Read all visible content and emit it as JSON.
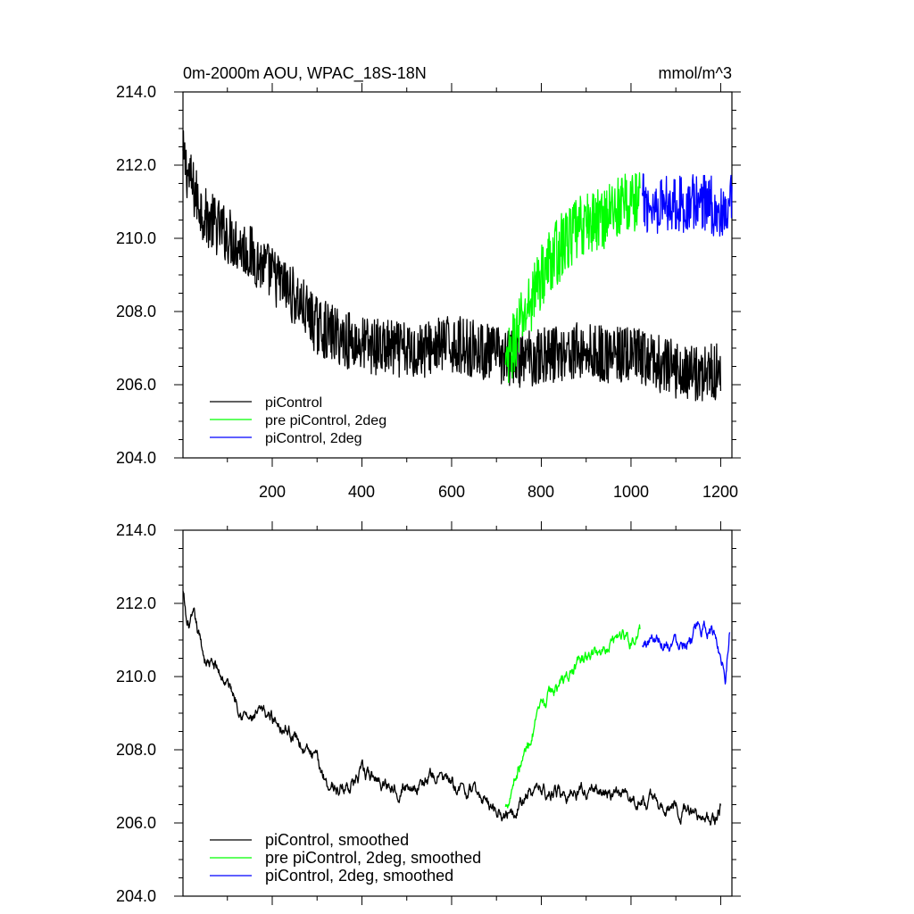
{
  "chart_data": [
    {
      "type": "line",
      "title": "0m-2000m AOU, WPAC_18S-18N",
      "units": "mmol/m^3",
      "xlim": [
        1,
        1225
      ],
      "ylim": [
        204,
        214
      ],
      "x_ticks": [
        200,
        400,
        600,
        800,
        1000,
        1200
      ],
      "x_tick_labels": [
        "200",
        "400",
        "600",
        "800",
        "1000",
        "1200"
      ],
      "y_ticks": [
        204,
        206,
        208,
        210,
        212,
        214
      ],
      "y_tick_labels": [
        "204.0",
        "206.0",
        "208.0",
        "210.0",
        "212.0",
        "214.0"
      ],
      "legend_position": "bottom-left",
      "series": [
        {
          "name": "piControl",
          "color": "#000000",
          "x": [
            1,
            25,
            50,
            100,
            150,
            200,
            250,
            300,
            350,
            400,
            450,
            500,
            550,
            600,
            650,
            700,
            750,
            800,
            850,
            900,
            950,
            1000,
            1050,
            1100,
            1150,
            1200
          ],
          "y": [
            212.2,
            211.3,
            210.6,
            210.1,
            209.6,
            209.0,
            208.4,
            207.6,
            207.3,
            207.1,
            207.0,
            206.9,
            207.0,
            207.1,
            207.0,
            206.8,
            206.7,
            206.8,
            206.9,
            206.9,
            206.8,
            206.8,
            206.6,
            206.4,
            206.3,
            206.4
          ],
          "noise": 0.8
        },
        {
          "name": "pre piControl, 2deg",
          "color": "#00ff00",
          "x": [
            720,
            740,
            760,
            780,
            800,
            820,
            840,
            860,
            880,
            900,
            920,
            940,
            960,
            980,
            1000,
            1020
          ],
          "y": [
            206.3,
            207.2,
            207.8,
            208.4,
            209.0,
            209.4,
            209.7,
            210.0,
            210.2,
            210.4,
            210.5,
            210.6,
            210.8,
            210.9,
            211.0,
            211.0
          ],
          "noise": 0.9
        },
        {
          "name": "piControl, 2deg",
          "color": "#0000ff",
          "x": [
            1025,
            1050,
            1075,
            1100,
            1125,
            1150,
            1175,
            1200,
            1210,
            1225
          ],
          "y": [
            211.0,
            210.9,
            211.0,
            211.0,
            210.9,
            211.0,
            211.0,
            210.6,
            210.4,
            211.0
          ],
          "noise": 0.8
        }
      ]
    },
    {
      "type": "line",
      "xlim": [
        1,
        1225
      ],
      "ylim": [
        204,
        214
      ],
      "y_ticks": [
        204,
        206,
        208,
        210,
        212,
        214
      ],
      "y_tick_labels": [
        "204.0",
        "206.0",
        "208.0",
        "210.0",
        "212.0",
        "214.0"
      ],
      "legend_position": "bottom-left",
      "series": [
        {
          "name": "piControl, smoothed",
          "color": "#000000",
          "x": [
            1,
            10,
            25,
            50,
            75,
            100,
            125,
            150,
            175,
            200,
            225,
            250,
            275,
            300,
            325,
            350,
            400,
            450,
            500,
            550,
            575,
            600,
            650,
            700,
            720,
            750,
            800,
            850,
            900,
            950,
            1000,
            1050,
            1100,
            1150,
            1190,
            1200
          ],
          "y": [
            212.3,
            211.3,
            211.5,
            210.5,
            210.2,
            209.8,
            209.3,
            208.8,
            208.9,
            208.9,
            208.7,
            208.4,
            208.0,
            207.6,
            207.1,
            206.9,
            207.3,
            207.1,
            207.0,
            207.2,
            207.3,
            207.0,
            206.8,
            206.4,
            206.3,
            206.6,
            206.9,
            206.8,
            206.9,
            206.8,
            206.6,
            206.6,
            206.4,
            206.3,
            206.0,
            206.5
          ],
          "noise": 0.2
        },
        {
          "name": "pre piControl, 2deg, smoothed",
          "color": "#00ff00",
          "x": [
            720,
            740,
            760,
            780,
            800,
            820,
            840,
            860,
            880,
            900,
            920,
            940,
            960,
            980,
            1000,
            1020
          ],
          "y": [
            206.4,
            207.3,
            207.8,
            208.5,
            209.0,
            209.5,
            209.8,
            210.0,
            210.3,
            210.5,
            210.6,
            210.8,
            211.1,
            211.2,
            211.0,
            211.2
          ],
          "noise": 0.2
        },
        {
          "name": "piControl, 2deg, smoothed",
          "color": "#0000ff",
          "x": [
            1025,
            1050,
            1075,
            1100,
            1125,
            1150,
            1175,
            1190,
            1200,
            1210,
            1220
          ],
          "y": [
            210.8,
            211.1,
            211.0,
            211.0,
            211.1,
            211.2,
            211.3,
            211.0,
            210.6,
            210.1,
            211.4
          ],
          "noise": 0.2
        }
      ]
    }
  ]
}
